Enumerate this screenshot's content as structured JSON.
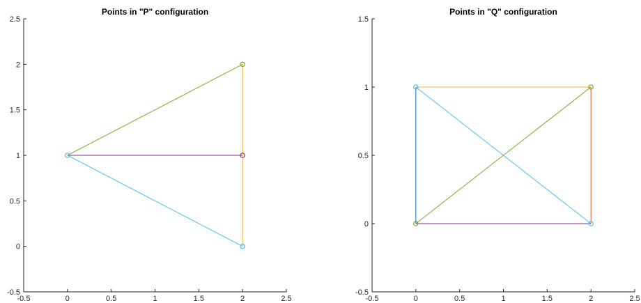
{
  "chart_data": [
    {
      "type": "line",
      "title": "Points in \"P\" configuration",
      "xlim": [
        -0.5,
        2.5
      ],
      "ylim": [
        -0.5,
        2.5
      ],
      "xticks": [
        "-0.5",
        "0",
        "0.5",
        "1",
        "1.5",
        "2",
        "2.5"
      ],
      "yticks": [
        "-0.5",
        "0",
        "0.5",
        "1",
        "1.5",
        "2",
        "2.5"
      ],
      "grid": false,
      "segments": [
        {
          "from": [
            0,
            1
          ],
          "to": [
            2,
            2
          ],
          "color": "#77ac30"
        },
        {
          "from": [
            0,
            1
          ],
          "to": [
            2,
            1
          ],
          "color": "#7e2f8e"
        },
        {
          "from": [
            0,
            1
          ],
          "to": [
            2,
            0
          ],
          "color": "#4dbeee"
        },
        {
          "from": [
            2,
            2
          ],
          "to": [
            2,
            1
          ],
          "color": "#edb120"
        },
        {
          "from": [
            2,
            1
          ],
          "to": [
            2,
            0
          ],
          "color": "#edb120"
        }
      ],
      "points": [
        {
          "x": 0,
          "y": 1,
          "color": "#4dbeee"
        },
        {
          "x": 2,
          "y": 2,
          "color": "#77ac30"
        },
        {
          "x": 2,
          "y": 1,
          "color": "#7e2f8e"
        },
        {
          "x": 2,
          "y": 0,
          "color": "#4dbeee"
        }
      ]
    },
    {
      "type": "line",
      "title": "Points in \"Q\" configuration",
      "xlim": [
        -0.5,
        2.5
      ],
      "ylim": [
        -0.5,
        1.5
      ],
      "xticks": [
        "-0.5",
        "0",
        "0.5",
        "1",
        "1.5",
        "2",
        "2.5"
      ],
      "yticks": [
        "-0.5",
        "0",
        "0.5",
        "1",
        "1.5"
      ],
      "grid": false,
      "segments": [
        {
          "from": [
            0,
            1
          ],
          "to": [
            2,
            1
          ],
          "color": "#edb120"
        },
        {
          "from": [
            0,
            1
          ],
          "to": [
            0,
            0
          ],
          "color": "#0072bd"
        },
        {
          "from": [
            0,
            1
          ],
          "to": [
            2,
            0
          ],
          "color": "#4dbeee"
        },
        {
          "from": [
            0,
            0
          ],
          "to": [
            2,
            1
          ],
          "color": "#77ac30"
        },
        {
          "from": [
            0,
            0
          ],
          "to": [
            2,
            0
          ],
          "color": "#7e2f8e"
        },
        {
          "from": [
            2,
            1
          ],
          "to": [
            2,
            0
          ],
          "color": "#d95319"
        }
      ],
      "points": [
        {
          "x": 0,
          "y": 1,
          "color": "#4dbeee"
        },
        {
          "x": 2,
          "y": 1,
          "color": "#77ac30"
        },
        {
          "x": 0,
          "y": 0,
          "color": "#77ac30"
        },
        {
          "x": 2,
          "y": 0,
          "color": "#4dbeee"
        }
      ]
    }
  ]
}
